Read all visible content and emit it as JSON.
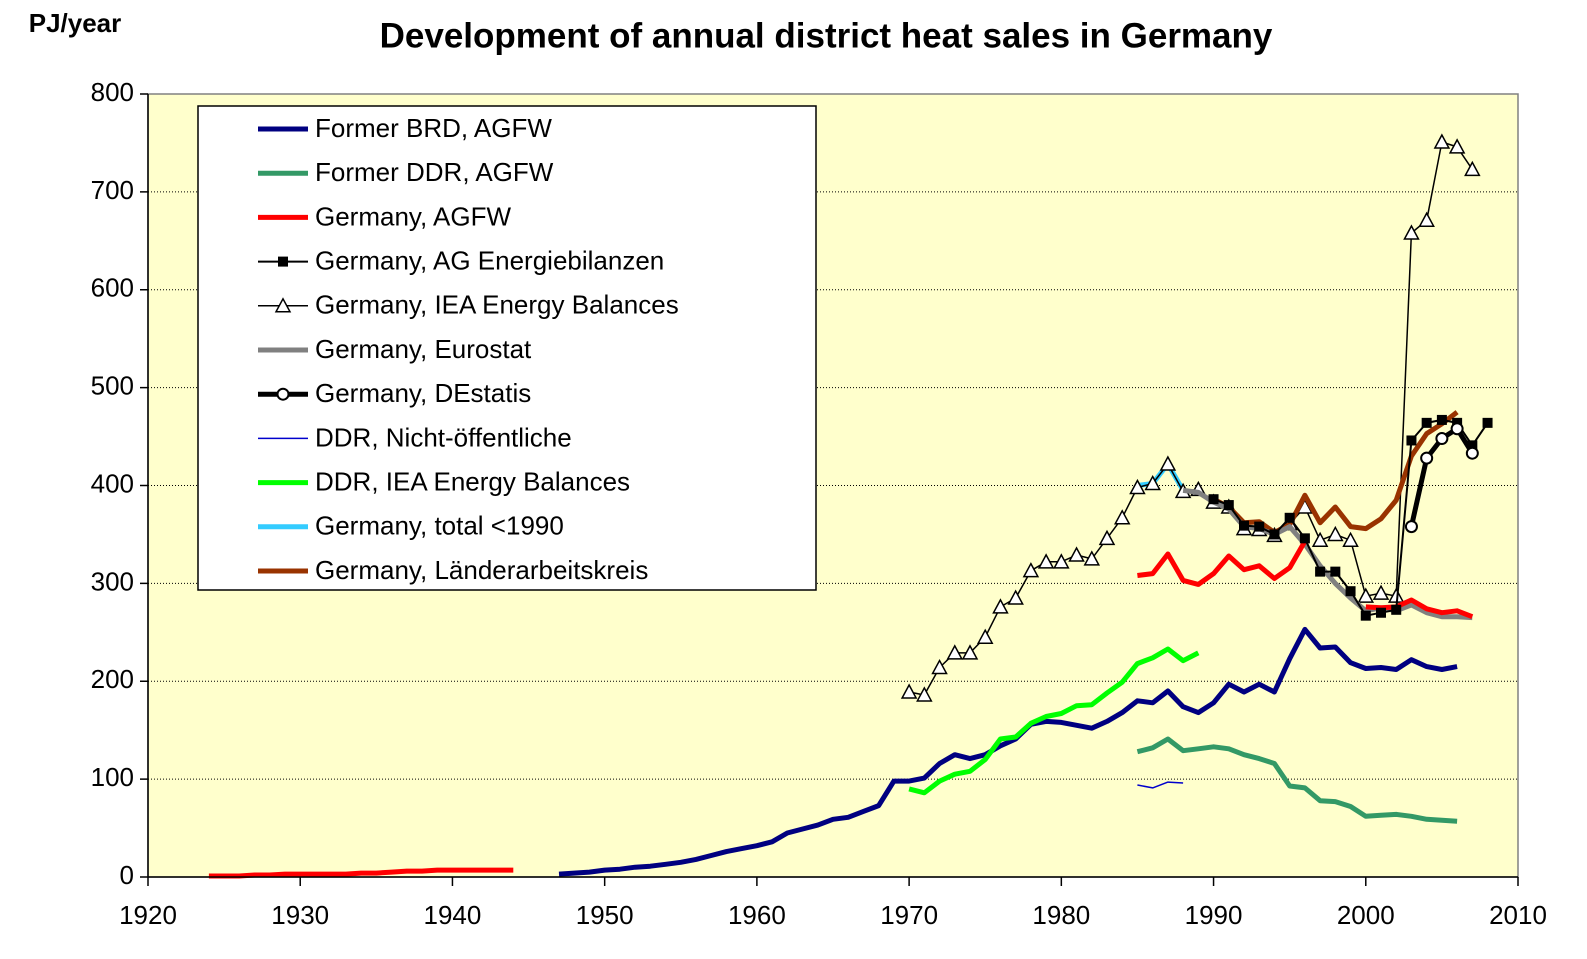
{
  "chart_data": {
    "type": "line",
    "title": "Development of annual district heat sales in Germany",
    "y_label": "PJ/year",
    "xlim": [
      1920,
      2010
    ],
    "xticks": [
      1920,
      1930,
      1940,
      1950,
      1960,
      1970,
      1980,
      1990,
      2000,
      2010
    ],
    "ylim": [
      0,
      800
    ],
    "yticks": [
      0,
      100,
      200,
      300,
      400,
      500,
      600,
      700,
      800
    ],
    "grid": true,
    "legend": "upper left",
    "series": [
      {
        "name": "Former BRD, AGFW",
        "color": "#000080",
        "line_width": 5,
        "marker": null,
        "x": [
          1947,
          1948,
          1949,
          1950,
          1951,
          1952,
          1953,
          1954,
          1955,
          1956,
          1957,
          1958,
          1959,
          1960,
          1961,
          1962,
          1963,
          1964,
          1965,
          1966,
          1967,
          1968,
          1969,
          1970,
          1971,
          1972,
          1973,
          1974,
          1975,
          1976,
          1977,
          1978,
          1979,
          1980,
          1981,
          1982,
          1983,
          1984,
          1985,
          1986,
          1987,
          1988,
          1989,
          1990,
          1991,
          1992,
          1993,
          1994,
          1995,
          1996,
          1997,
          1998,
          1999,
          2000,
          2001,
          2002,
          2003,
          2004,
          2005,
          2006
        ],
        "values": [
          3,
          4,
          5,
          7,
          8,
          10,
          11,
          13,
          15,
          18,
          22,
          26,
          29,
          32,
          36,
          45,
          49,
          53,
          59,
          61,
          67,
          73,
          98,
          98,
          101,
          116,
          125,
          121,
          125,
          134,
          141,
          156,
          159,
          158,
          155,
          152,
          159,
          168,
          180,
          178,
          190,
          174,
          168,
          178,
          197,
          189,
          197,
          189,
          223,
          253,
          234,
          235,
          219,
          213,
          214,
          212,
          222,
          215,
          212,
          215
        ]
      },
      {
        "name": "Former DDR, AGFW",
        "color": "#339966",
        "line_width": 5,
        "marker": null,
        "x": [
          1985,
          1986,
          1987,
          1988,
          1989,
          1990,
          1991,
          1992,
          1993,
          1994,
          1995,
          1996,
          1997,
          1998,
          1999,
          2000,
          2001,
          2002,
          2003,
          2004,
          2005,
          2006
        ],
        "values": [
          128,
          132,
          141,
          129,
          131,
          133,
          131,
          125,
          121,
          116,
          93,
          91,
          78,
          77,
          72,
          62,
          63,
          64,
          62,
          59,
          58,
          57
        ]
      },
      {
        "name": "Germany, AGFW",
        "color": "#ff0000",
        "line_width": 5,
        "marker": null,
        "x": [
          1924,
          1925,
          1926,
          1927,
          1928,
          1929,
          1930,
          1931,
          1932,
          1933,
          1934,
          1935,
          1936,
          1937,
          1938,
          1939,
          1940,
          1941,
          1942,
          1943,
          1944,
          1945,
          1985,
          1986,
          1987,
          1988,
          1989,
          1990,
          1991,
          1992,
          1993,
          1994,
          1995,
          1996,
          1997,
          2000,
          2001,
          2002,
          2003,
          2004,
          2005,
          2006,
          2007
        ],
        "values": [
          1,
          1,
          1,
          2,
          2,
          3,
          3,
          3,
          3,
          3,
          4,
          4,
          5,
          6,
          6,
          7,
          7,
          7,
          7,
          7,
          7,
          null,
          308,
          310,
          330,
          303,
          299,
          310,
          328,
          314,
          318,
          305,
          316,
          343,
          null,
          276,
          275,
          276,
          283,
          274,
          270,
          272,
          266
        ]
      },
      {
        "name": "Germany, AG Energiebilanzen",
        "color": "#000000",
        "line_width": 2,
        "marker": "square",
        "x": [
          1990,
          1991,
          1992,
          1993,
          1994,
          1995,
          1996,
          1997,
          1998,
          1999,
          2000,
          2001,
          2002,
          2003,
          2004,
          2005,
          2006,
          2007,
          2008
        ],
        "values": [
          386,
          380,
          359,
          358,
          350,
          367,
          346,
          312,
          312,
          292,
          267,
          270,
          273,
          446,
          464,
          467,
          464,
          441,
          464
        ]
      },
      {
        "name": "Germany, IEA Energy Balances",
        "color": "#000000",
        "line_width": 1.5,
        "marker": "triangle",
        "x": [
          1970,
          1971,
          1972,
          1973,
          1974,
          1975,
          1976,
          1977,
          1978,
          1979,
          1980,
          1981,
          1982,
          1983,
          1984,
          1985,
          1986,
          1987,
          1988,
          1989,
          1990,
          1991,
          1992,
          1993,
          1994,
          1995,
          1996,
          1997,
          1998,
          1999,
          2000,
          2001,
          2002,
          2003,
          2004,
          2005,
          2006,
          2007
        ],
        "values": [
          189,
          186,
          214,
          229,
          229,
          245,
          276,
          285,
          313,
          322,
          322,
          329,
          325,
          346,
          367,
          398,
          402,
          422,
          394,
          396,
          383,
          378,
          356,
          355,
          349,
          361,
          378,
          344,
          350,
          344,
          287,
          290,
          287,
          658,
          671,
          751,
          746,
          723
        ]
      },
      {
        "name": "Germany, Eurostat",
        "color": "#808080",
        "line_width": 5,
        "marker": null,
        "x": [
          1988,
          1989,
          1990,
          1991,
          1992,
          1993,
          1994,
          1995,
          1996,
          1997,
          1998,
          1999,
          2000,
          2001,
          2002,
          2003,
          2004,
          2005,
          2006,
          2007
        ],
        "values": [
          395,
          393,
          383,
          376,
          358,
          356,
          350,
          358,
          340,
          318,
          300,
          285,
          272,
          275,
          272,
          278,
          270,
          266,
          266,
          265
        ]
      },
      {
        "name": "Germany, DEstatis",
        "color": "#000000",
        "line_width": 5,
        "marker": "circle",
        "x": [
          2003,
          2004,
          2005,
          2006,
          2007
        ],
        "values": [
          358,
          428,
          448,
          458,
          433
        ]
      },
      {
        "name": "DDR, Nicht-öffentliche",
        "color": "#0000cc",
        "line_width": 1.5,
        "marker": null,
        "x": [
          1985,
          1986,
          1987,
          1988
        ],
        "values": [
          94,
          91,
          97,
          96
        ]
      },
      {
        "name": "DDR, IEA Energy Balances",
        "color": "#00ff00",
        "line_width": 5,
        "marker": null,
        "x": [
          1970,
          1971,
          1972,
          1973,
          1974,
          1975,
          1976,
          1977,
          1978,
          1979,
          1980,
          1981,
          1982,
          1983,
          1984,
          1985,
          1986,
          1987,
          1988,
          1989
        ],
        "values": [
          90,
          86,
          98,
          105,
          108,
          120,
          141,
          143,
          157,
          164,
          167,
          175,
          176,
          188,
          199,
          218,
          224,
          233,
          221,
          229
        ]
      },
      {
        "name": "Germany, total <1990",
        "color": "#33ccff",
        "line_width": 5,
        "marker": null,
        "x": [
          1985,
          1986,
          1987,
          1988
        ],
        "values": [
          400,
          402,
          422,
          395
        ]
      },
      {
        "name": "Germany, Länderarbeitskreis",
        "color": "#993300",
        "line_width": 5,
        "marker": null,
        "x": [
          1990,
          1991,
          1992,
          1993,
          1994,
          1995,
          1996,
          1997,
          1998,
          1999,
          2000,
          2001,
          2002,
          2003,
          2004,
          2005,
          2006
        ],
        "values": [
          386,
          378,
          362,
          363,
          352,
          360,
          390,
          362,
          378,
          358,
          356,
          366,
          385,
          430,
          453,
          463,
          475
        ]
      }
    ]
  }
}
